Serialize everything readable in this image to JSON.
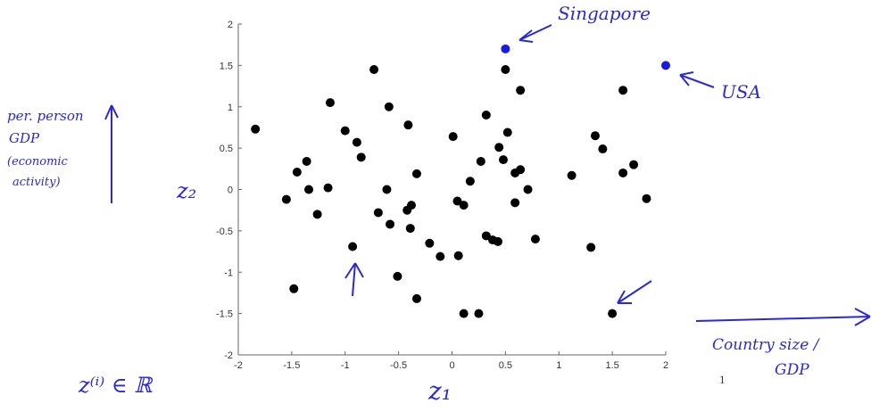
{
  "chart_data": {
    "type": "scatter",
    "xlabel": "z1",
    "ylabel": "z2",
    "xlim": [
      -2,
      2
    ],
    "ylim": [
      -2,
      2
    ],
    "xticks": [
      "-2",
      "-1.5",
      "-1",
      "-0.5",
      "0",
      "0.5",
      "1",
      "1.5",
      "2"
    ],
    "yticks": [
      "-2",
      "-1.5",
      "-1",
      "-0.5",
      "0",
      "0.5",
      "1",
      "1.5",
      "2"
    ],
    "grid": false,
    "point_color": "#000000",
    "highlight_color": "#1a1ae0",
    "points": [
      [
        -1.84,
        0.73
      ],
      [
        -1.55,
        -0.12
      ],
      [
        -1.45,
        0.21
      ],
      [
        -1.36,
        0.34
      ],
      [
        -1.34,
        0.0
      ],
      [
        -1.48,
        -1.2
      ],
      [
        -1.26,
        -0.3
      ],
      [
        -1.16,
        0.02
      ],
      [
        -1.14,
        1.05
      ],
      [
        -1.0,
        0.71
      ],
      [
        -0.89,
        0.57
      ],
      [
        -0.85,
        0.39
      ],
      [
        -0.93,
        -0.69
      ],
      [
        -0.73,
        1.45
      ],
      [
        -0.69,
        -0.28
      ],
      [
        -0.59,
        1.0
      ],
      [
        -0.61,
        0.0
      ],
      [
        -0.58,
        -0.42
      ],
      [
        -0.51,
        -1.05
      ],
      [
        -0.41,
        0.78
      ],
      [
        -0.42,
        -0.25
      ],
      [
        -0.38,
        -0.19
      ],
      [
        -0.39,
        -0.47
      ],
      [
        -0.33,
        0.19
      ],
      [
        -0.33,
        -1.32
      ],
      [
        -0.21,
        -0.65
      ],
      [
        -0.11,
        -0.81
      ],
      [
        0.01,
        0.64
      ],
      [
        0.05,
        -0.14
      ],
      [
        0.11,
        -0.19
      ],
      [
        0.06,
        -0.8
      ],
      [
        0.11,
        -1.5
      ],
      [
        0.17,
        0.1
      ],
      [
        0.25,
        -1.5
      ],
      [
        0.27,
        0.34
      ],
      [
        0.32,
        0.9
      ],
      [
        0.32,
        -0.56
      ],
      [
        0.38,
        -0.61
      ],
      [
        0.43,
        -0.63
      ],
      [
        0.44,
        0.51
      ],
      [
        0.48,
        0.36
      ],
      [
        0.5,
        1.45
      ],
      [
        0.52,
        0.69
      ],
      [
        0.59,
        0.2
      ],
      [
        0.64,
        0.24
      ],
      [
        0.59,
        -0.16
      ],
      [
        0.64,
        1.2
      ],
      [
        0.71,
        0.0
      ],
      [
        0.78,
        -0.6
      ],
      [
        1.12,
        0.17
      ],
      [
        1.3,
        -0.7
      ],
      [
        1.34,
        0.65
      ],
      [
        1.41,
        0.49
      ],
      [
        1.5,
        -1.5
      ],
      [
        1.6,
        1.2
      ],
      [
        1.6,
        0.2
      ],
      [
        1.7,
        0.3
      ],
      [
        1.82,
        -0.11
      ]
    ],
    "highlighted_points": [
      {
        "label": "Singapore",
        "x": 0.5,
        "y": 1.7
      },
      {
        "label": "USA",
        "x": 2.0,
        "y": 1.5
      }
    ]
  },
  "annotations": {
    "singapore": "Singapore",
    "usa": "USA",
    "yaxis_note_1": "per. person",
    "yaxis_note_2": "GDP",
    "yaxis_note_3": "(economic",
    "yaxis_note_4": "activity)",
    "z2": "z₂",
    "z1": "z₁",
    "xaxis_note_1": "Country size /",
    "xaxis_note_2": "GDP",
    "zi": "z⁽ⁱ⁾ ∈ ℝ",
    "stray": "1"
  }
}
